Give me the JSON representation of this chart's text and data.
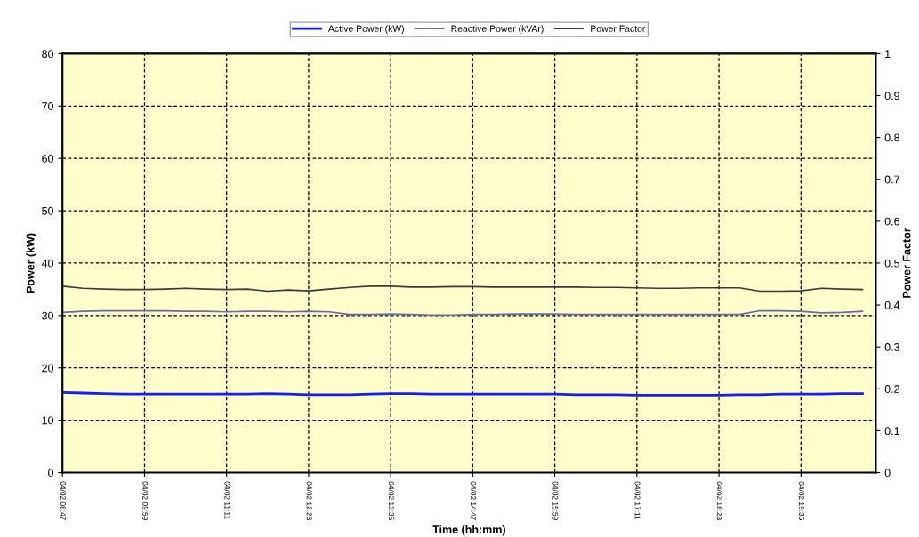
{
  "chart_data": {
    "type": "line",
    "xlabel": "Time (hh:mm)",
    "ylabel": "Power (kW)",
    "y2label": "Power Factor",
    "categories": [
      "04/02 08:47",
      null,
      null,
      null,
      "04/02 09:59",
      null,
      null,
      null,
      "04/02 11:11",
      null,
      null,
      null,
      "04/02 12:23",
      null,
      null,
      null,
      "04/02 13:35",
      null,
      null,
      null,
      "04/02 14:47",
      null,
      null,
      null,
      "04/02 15:59",
      null,
      null,
      null,
      "04/02 17:11",
      null,
      null,
      null,
      "04/02 18:23",
      null,
      null,
      null,
      "04/02 19:35",
      null,
      null,
      null
    ],
    "series": [
      {
        "name": "Active Power (kW)",
        "color": "#1a1aff",
        "values": [
          15.3,
          15.2,
          15.1,
          15.0,
          15.0,
          15.0,
          15.0,
          15.0,
          15.0,
          15.0,
          15.1,
          15.0,
          14.9,
          14.9,
          14.9,
          15.0,
          15.1,
          15.1,
          15.0,
          15.0,
          15.0,
          15.0,
          15.0,
          15.0,
          15.0,
          14.9,
          14.9,
          14.9,
          14.8,
          14.8,
          14.8,
          14.8,
          14.8,
          14.9,
          14.9,
          15.0,
          15.0,
          15.0,
          15.1,
          15.1
        ]
      },
      {
        "name": "Reactive Power (kVAr)",
        "color": "#6a6aa8",
        "values": [
          30.6,
          30.8,
          30.9,
          30.9,
          30.9,
          30.9,
          30.8,
          30.8,
          30.7,
          30.8,
          30.8,
          30.7,
          30.8,
          30.7,
          30.2,
          30.2,
          30.3,
          30.2,
          30.1,
          30.1,
          30.2,
          30.2,
          30.3,
          30.3,
          30.3,
          30.2,
          30.2,
          30.2,
          30.2,
          30.2,
          30.2,
          30.2,
          30.2,
          30.2,
          30.9,
          30.9,
          30.8,
          30.5,
          30.6,
          30.8
        ]
      },
      {
        "name": "Power Factor",
        "color": "#3a3a3a",
        "axis": "y2",
        "values": [
          0.445,
          0.44,
          0.438,
          0.437,
          0.437,
          0.438,
          0.44,
          0.438,
          0.437,
          0.438,
          0.433,
          0.436,
          0.434,
          0.438,
          0.442,
          0.445,
          0.445,
          0.443,
          0.443,
          0.444,
          0.444,
          0.443,
          0.443,
          0.443,
          0.443,
          0.443,
          0.442,
          0.442,
          0.441,
          0.44,
          0.44,
          0.441,
          0.441,
          0.441,
          0.433,
          0.433,
          0.434,
          0.44,
          0.438,
          0.437
        ]
      }
    ],
    "ylim": [
      0,
      80
    ],
    "yticks": [
      0,
      10,
      20,
      30,
      40,
      50,
      60,
      70,
      80
    ],
    "y2lim": [
      0,
      1
    ],
    "y2ticks": [
      0,
      0.1,
      0.2,
      0.3,
      0.4,
      0.5,
      0.6,
      0.7,
      0.8,
      0.9,
      1
    ],
    "grid": true,
    "legend": "top",
    "line_style": "solid",
    "marker": "none"
  }
}
